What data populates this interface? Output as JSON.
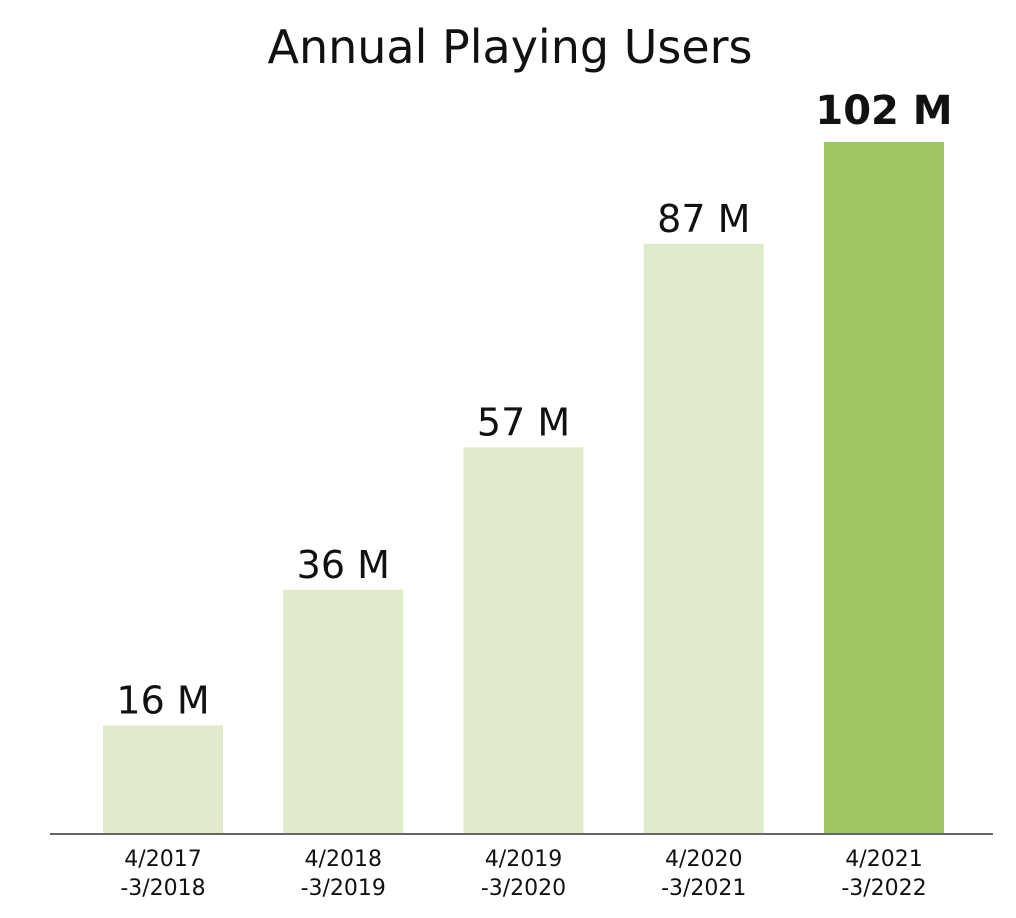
{
  "chart_data": {
    "type": "bar",
    "title": "Annual Playing Users",
    "xlabel": "",
    "ylabel": "",
    "categories": [
      [
        "4/2017",
        "-3/2018"
      ],
      [
        "4/2018",
        "-3/2019"
      ],
      [
        "4/2019",
        "-3/2020"
      ],
      [
        "4/2020",
        "-3/2021"
      ],
      [
        "4/2021",
        "-3/2022"
      ]
    ],
    "values": [
      16,
      36,
      57,
      87,
      102
    ],
    "data_labels": [
      "16 M",
      "36 M",
      "57 M",
      "87 M",
      "102 M"
    ],
    "highlight_index": 4,
    "ylim": [
      0,
      102
    ],
    "grid": false,
    "legend": "none"
  },
  "colors": {
    "bar": "#e0ebcb",
    "bar_highlight": "#9dc662",
    "axis": "#666666",
    "text": "#111111"
  }
}
